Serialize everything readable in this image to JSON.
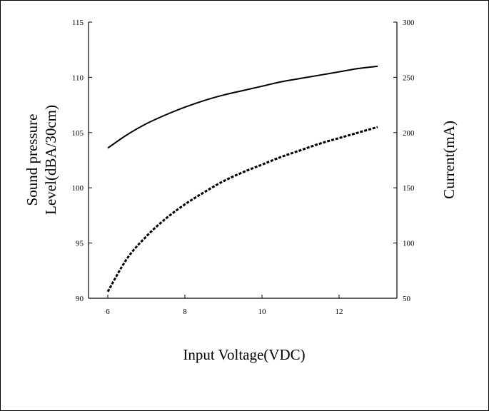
{
  "chart_data": {
    "type": "line",
    "xlabel": "Input Voltage(VDC)",
    "ylabel_lines": [
      "Sound pressure",
      "Level(dBA/30cm)"
    ],
    "y2label": "Current(mA)",
    "xlim": [
      5.5,
      13.5
    ],
    "ylim": [
      90,
      115
    ],
    "y2lim": [
      50,
      300
    ],
    "xticks": [
      6,
      8,
      10,
      12
    ],
    "yticks": [
      90,
      95,
      100,
      105,
      110,
      115
    ],
    "y2ticks": [
      50,
      100,
      150,
      200,
      250,
      300
    ],
    "grid": false,
    "legend": "none",
    "series": [
      {
        "axis": "left",
        "style": "solid",
        "x": [
          6,
          6.5,
          7,
          7.5,
          8,
          8.5,
          9,
          9.5,
          10,
          10.5,
          11,
          11.5,
          12,
          12.5,
          13
        ],
        "values": [
          103.6,
          104.8,
          105.8,
          106.6,
          107.3,
          107.9,
          108.4,
          108.8,
          109.2,
          109.6,
          109.9,
          110.2,
          110.5,
          110.8,
          111.0
        ]
      },
      {
        "axis": "right",
        "style": "dashed",
        "x": [
          6,
          6.5,
          7,
          7.5,
          8,
          8.5,
          9,
          9.5,
          10,
          10.5,
          11,
          11.5,
          12,
          12.5,
          13
        ],
        "values": [
          56,
          86,
          106,
          122,
          135,
          146,
          156,
          164,
          171,
          178,
          184,
          190,
          195,
          200,
          205
        ]
      }
    ]
  }
}
